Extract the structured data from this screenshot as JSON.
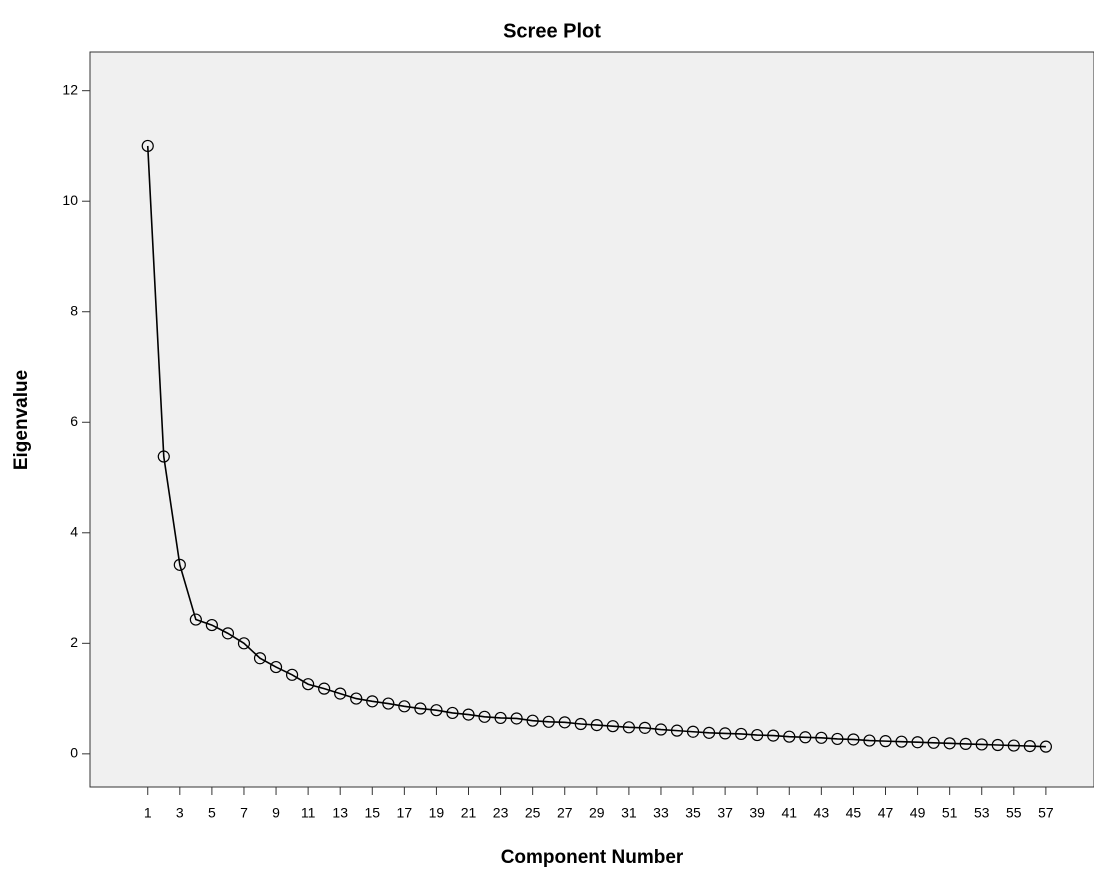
{
  "chart_data": {
    "type": "line",
    "title": "Scree Plot",
    "x_label": "Component Number",
    "y_label": "Eigenvalue",
    "x": [
      1,
      2,
      3,
      4,
      5,
      6,
      7,
      8,
      9,
      10,
      11,
      12,
      13,
      14,
      15,
      16,
      17,
      18,
      19,
      20,
      21,
      22,
      23,
      24,
      25,
      26,
      27,
      28,
      29,
      30,
      31,
      32,
      33,
      34,
      35,
      36,
      37,
      38,
      39,
      40,
      41,
      42,
      43,
      44,
      45,
      46,
      47,
      48,
      49,
      50,
      51,
      52,
      53,
      54,
      55,
      56,
      57
    ],
    "series": [
      {
        "color": "#000000",
        "marker": "circle",
        "values": [
          11.0,
          5.38,
          3.42,
          2.43,
          2.33,
          2.18,
          2.0,
          1.73,
          1.57,
          1.43,
          1.26,
          1.18,
          1.09,
          1.0,
          0.95,
          0.91,
          0.86,
          0.82,
          0.79,
          0.74,
          0.71,
          0.67,
          0.65,
          0.64,
          0.6,
          0.58,
          0.57,
          0.54,
          0.52,
          0.5,
          0.48,
          0.47,
          0.44,
          0.42,
          0.4,
          0.38,
          0.37,
          0.36,
          0.34,
          0.33,
          0.31,
          0.3,
          0.29,
          0.27,
          0.26,
          0.24,
          0.23,
          0.22,
          0.21,
          0.2,
          0.19,
          0.18,
          0.17,
          0.16,
          0.15,
          0.14,
          0.13
        ]
      }
    ],
    "xlim": [
      -2.6,
      60
    ],
    "xticks": [
      1,
      3,
      5,
      7,
      9,
      11,
      13,
      15,
      17,
      19,
      21,
      23,
      25,
      27,
      29,
      31,
      33,
      35,
      37,
      39,
      41,
      43,
      45,
      47,
      49,
      51,
      53,
      55,
      57
    ],
    "ylim": [
      -0.6,
      12.7
    ],
    "yticks": [
      0,
      2,
      4,
      6,
      8,
      10,
      12
    ],
    "grid": false
  }
}
